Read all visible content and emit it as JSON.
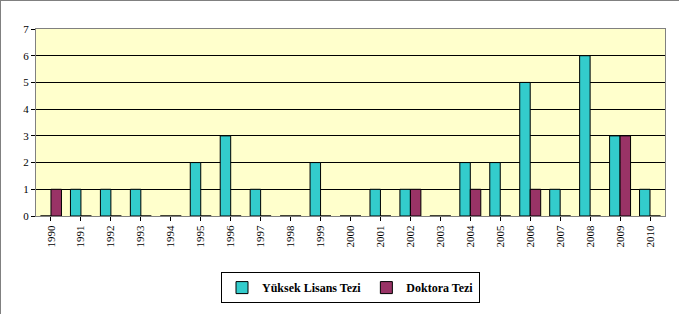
{
  "chart_data": {
    "type": "bar",
    "categories": [
      "1990",
      "1991",
      "1992",
      "1993",
      "1994",
      "1995",
      "1996",
      "1997",
      "1998",
      "1999",
      "2000",
      "2001",
      "2002",
      "2003",
      "2004",
      "2005",
      "2006",
      "2007",
      "2008",
      "2009",
      "2010"
    ],
    "series": [
      {
        "name": "Yüksek Lisans Tezi",
        "color": "#33cccc",
        "values": [
          0,
          1,
          1,
          1,
          0,
          2,
          3,
          1,
          0,
          2,
          0,
          1,
          1,
          0,
          2,
          2,
          5,
          1,
          6,
          3,
          1
        ]
      },
      {
        "name": "Doktora Tezi",
        "color": "#993366",
        "values": [
          1,
          0,
          0,
          0,
          0,
          0,
          0,
          0,
          0,
          0,
          0,
          0,
          1,
          0,
          1,
          0,
          1,
          0,
          0,
          3,
          0
        ]
      }
    ],
    "ylim": [
      0,
      7
    ],
    "yticks": [
      0,
      1,
      2,
      3,
      4,
      5,
      6,
      7
    ],
    "grid": true,
    "legend": "bottom"
  }
}
